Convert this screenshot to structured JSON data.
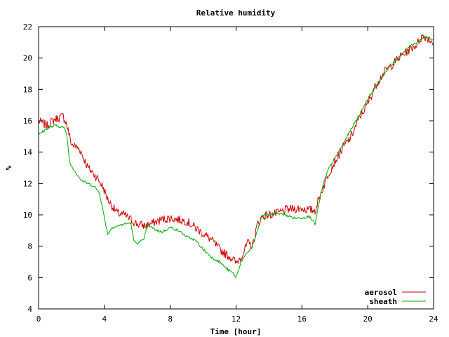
{
  "chart_data": {
    "type": "line",
    "title": "Relative humidity",
    "xlabel": "Time [hour]",
    "ylabel": "%",
    "xlim": [
      0,
      24
    ],
    "ylim": [
      4,
      22
    ],
    "xticks": [
      0,
      4,
      8,
      12,
      16,
      20,
      24
    ],
    "yticks": [
      4,
      6,
      8,
      10,
      12,
      14,
      16,
      18,
      20,
      22
    ],
    "grid": false,
    "legend_position": "bottom-right",
    "series": [
      {
        "name": "aerosol",
        "color": "#cc0000",
        "x": [
          0,
          0.5,
          1,
          1.5,
          1.7,
          2,
          2.5,
          3,
          3.3,
          3.6,
          3.9,
          4.2,
          4.5,
          4.8,
          5.2,
          5.6,
          6,
          6.5,
          7,
          7.5,
          8,
          8.5,
          9,
          9.5,
          10,
          10.5,
          11,
          11.5,
          11.8,
          12,
          12.4,
          12.7,
          13,
          13.3,
          13.6,
          14,
          14.5,
          15,
          15.5,
          16,
          16.5,
          16.8,
          17.2,
          17.6,
          18,
          18.5,
          19,
          19.5,
          20,
          20.5,
          21,
          21.5,
          22,
          22.5,
          23,
          23.3,
          23.6,
          24
        ],
        "y": [
          16.0,
          15.7,
          16.1,
          16.3,
          15.8,
          14.5,
          14.2,
          13.0,
          12.7,
          12.3,
          11.8,
          11.0,
          10.5,
          10.1,
          10.0,
          9.7,
          9.4,
          9.3,
          9.5,
          9.7,
          9.8,
          9.7,
          9.6,
          9.2,
          8.8,
          8.4,
          7.8,
          7.4,
          7.2,
          6.9,
          7.5,
          8.2,
          8.0,
          9.4,
          9.9,
          10.0,
          10.1,
          10.3,
          10.4,
          10.4,
          10.3,
          10.3,
          11.5,
          12.6,
          13.4,
          14.3,
          15.0,
          16.2,
          17.1,
          18.3,
          19.1,
          19.6,
          20.1,
          20.5,
          20.9,
          21.4,
          21.3,
          21.0
        ]
      },
      {
        "name": "sheath",
        "color": "#00aa00",
        "x": [
          0,
          0.5,
          1,
          1.5,
          1.7,
          1.9,
          2.2,
          2.6,
          3,
          3.4,
          3.7,
          4.0,
          4.2,
          4.5,
          4.8,
          5.2,
          5.6,
          5.8,
          6.0,
          6.4,
          6.6,
          7,
          7.5,
          8,
          8.5,
          9,
          9.5,
          10,
          10.5,
          11,
          11.5,
          11.8,
          12.0,
          12.3,
          12.7,
          13.0,
          13.3,
          13.6,
          14,
          14.5,
          15,
          15.5,
          16,
          16.5,
          16.8,
          17.2,
          17.6,
          18,
          18.5,
          19,
          19.5,
          20,
          20.5,
          21,
          21.5,
          22,
          22.5,
          23,
          23.5,
          24
        ],
        "y": [
          15.1,
          15.5,
          15.7,
          15.6,
          15.2,
          13.3,
          12.8,
          12.2,
          12.0,
          11.8,
          11.4,
          9.8,
          8.8,
          9.2,
          9.3,
          9.4,
          9.5,
          8.3,
          8.2,
          8.4,
          9.4,
          9.1,
          8.9,
          9.2,
          9.0,
          8.6,
          8.4,
          7.8,
          7.3,
          7.0,
          6.5,
          6.3,
          6.0,
          7.0,
          7.6,
          8.0,
          9.0,
          10.0,
          10.0,
          10.1,
          10.0,
          9.8,
          9.8,
          9.9,
          9.4,
          11.6,
          12.9,
          13.6,
          14.5,
          15.5,
          16.4,
          17.4,
          18.2,
          19.0,
          19.6,
          20.2,
          20.7,
          21.0,
          21.4,
          21.1
        ]
      }
    ]
  }
}
